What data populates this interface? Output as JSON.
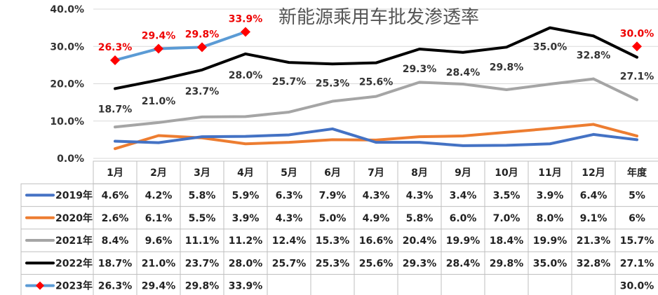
{
  "chart_data": {
    "type": "line",
    "title": "新能源乘用车批发渗透率",
    "categories": [
      "1月",
      "2月",
      "3月",
      "4月",
      "5月",
      "6月",
      "7月",
      "8月",
      "9月",
      "10月",
      "11月",
      "12月",
      "年度"
    ],
    "ylim": [
      0,
      40
    ],
    "y_ticks": [
      "0.0%",
      "10.0%",
      "20.0%",
      "30.0%",
      "40.0%"
    ],
    "grid": true,
    "legend_placement": "data-table",
    "series": [
      {
        "name": "2019年",
        "color": "#4472c4",
        "values": [
          4.6,
          4.2,
          5.8,
          5.9,
          6.3,
          7.9,
          4.3,
          4.3,
          3.4,
          3.5,
          3.9,
          6.4,
          5
        ],
        "cells": [
          "4.6%",
          "4.2%",
          "5.8%",
          "5.9%",
          "6.3%",
          "7.9%",
          "4.3%",
          "4.3%",
          "3.4%",
          "3.5%",
          "3.9%",
          "6.4%",
          "5%"
        ]
      },
      {
        "name": "2020年",
        "color": "#ed7d31",
        "values": [
          2.6,
          6.1,
          5.5,
          3.9,
          4.3,
          5.0,
          4.9,
          5.8,
          6.0,
          7.0,
          8.0,
          9.1,
          6
        ],
        "cells": [
          "2.6%",
          "6.1%",
          "5.5%",
          "3.9%",
          "4.3%",
          "5.0%",
          "4.9%",
          "5.8%",
          "6.0%",
          "7.0%",
          "8.0%",
          "9.1%",
          "6%"
        ]
      },
      {
        "name": "2021年",
        "color": "#a5a5a5",
        "values": [
          8.4,
          9.6,
          11.1,
          11.2,
          12.4,
          15.3,
          16.6,
          20.4,
          19.9,
          18.4,
          19.9,
          21.3,
          15.7
        ],
        "cells": [
          "8.4%",
          "9.6%",
          "11.1%",
          "11.2%",
          "12.4%",
          "15.3%",
          "16.6%",
          "20.4%",
          "19.9%",
          "18.4%",
          "19.9%",
          "21.3%",
          "15.7%"
        ]
      },
      {
        "name": "2022年",
        "color": "#000000",
        "values": [
          18.7,
          21.0,
          23.7,
          28.0,
          25.7,
          25.3,
          25.6,
          29.3,
          28.4,
          29.8,
          35.0,
          32.8,
          27.1
        ],
        "cells": [
          "18.7%",
          "21.0%",
          "23.7%",
          "28.0%",
          "25.7%",
          "25.3%",
          "25.6%",
          "29.3%",
          "28.4%",
          "29.8%",
          "35.0%",
          "32.8%",
          "27.1%"
        ]
      },
      {
        "name": "2023年",
        "color": "#5b9bd5",
        "marker_color": "#ff0000",
        "values": [
          26.3,
          29.4,
          29.8,
          33.9,
          null,
          null,
          null,
          null,
          null,
          null,
          null,
          null,
          30.0
        ],
        "cells": [
          "26.3%",
          "29.4%",
          "29.8%",
          "33.9%",
          "",
          "",
          "",
          "",
          "",
          "",
          "",
          "",
          "30.0%"
        ]
      }
    ],
    "data_labels_2022": [
      "18.7%",
      "21.0%",
      "23.7%",
      "28.0%",
      "25.7%",
      "25.3%",
      "25.6%",
      "29.3%",
      "28.4%",
      "29.8%",
      "35.0%",
      "32.8%",
      "27.1%"
    ],
    "data_labels_2023": [
      "26.3%",
      "29.4%",
      "29.8%",
      "33.9%",
      "",
      "",
      "",
      "",
      "",
      "",
      "",
      "",
      "30.0%"
    ]
  }
}
